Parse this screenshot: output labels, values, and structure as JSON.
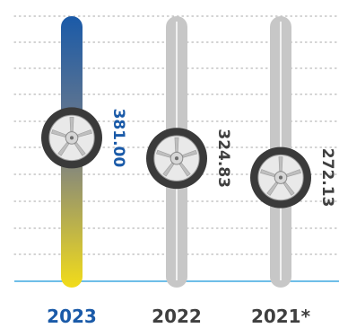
{
  "chart_data": {
    "type": "bar",
    "categories": [
      "2023",
      "2022",
      "2021*"
    ],
    "values": [
      381.0,
      324.83,
      272.13
    ],
    "value_labels": [
      "381.00",
      "324.83",
      "272.13"
    ],
    "title": "",
    "xlabel": "",
    "ylabel": "",
    "grid": true,
    "legend": "none",
    "ylim": [
      0,
      700
    ]
  },
  "colors": {
    "highlight_top": "#1a5aa8",
    "highlight_bottom": "#f2dc1a",
    "gray_track": "#c7c7c7",
    "axis_line": "#3fa9e0",
    "grid_dots": "#b9b9b9",
    "label_dark": "#3f3f3f",
    "label_highlight": "#1a5aa8",
    "tire_dark": "#3a3a3a",
    "rim_light": "#e9e9e9",
    "rim_spoke": "#bfbfbf"
  },
  "icons": {
    "tire": "tire-icon"
  }
}
